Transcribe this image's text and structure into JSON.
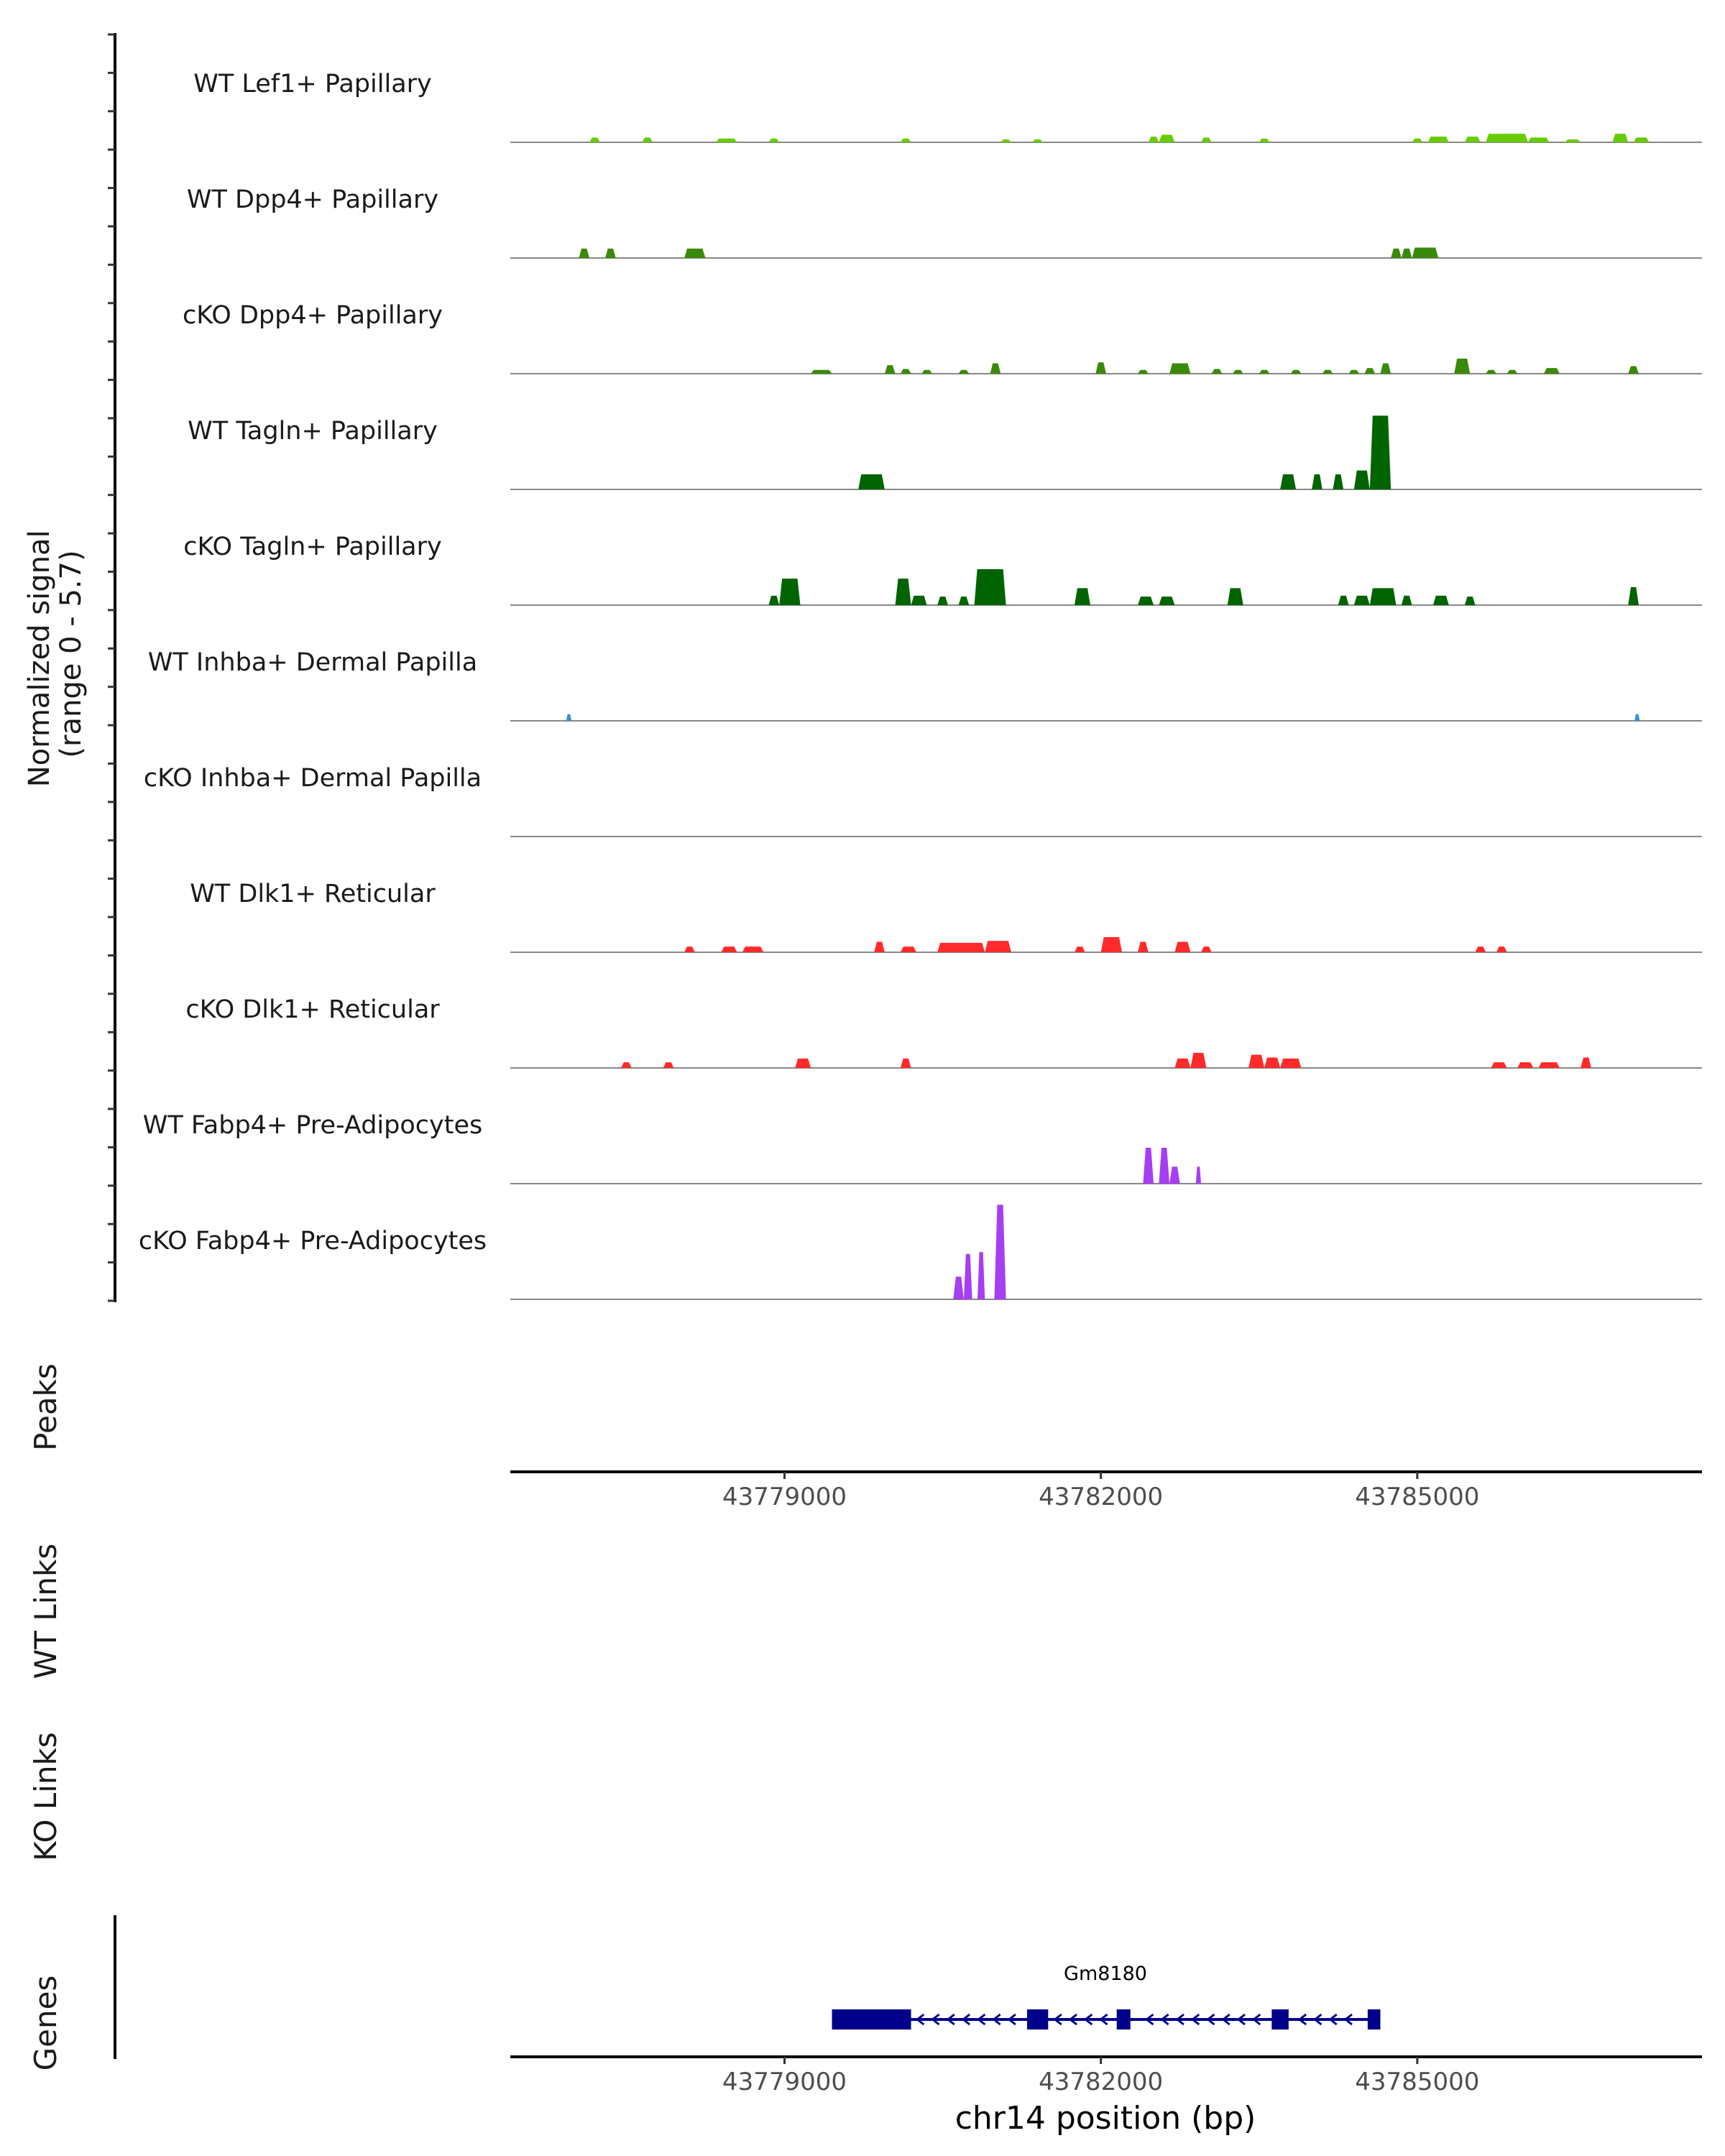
{
  "chart_data": {
    "type": "area",
    "chromosome": "chr14",
    "xlim": [
      43776400,
      43787700
    ],
    "xticks": [
      43779000,
      43782000,
      43785000
    ],
    "xtick_labels": [
      "43779000",
      "43782000",
      "43785000"
    ],
    "xlabel": "chr14 position (bp)",
    "coverage": {
      "ylabel_lines": [
        "Normalized signal",
        "(range 0 - 5.7)"
      ],
      "ylim": [
        0,
        5.7
      ],
      "tracks": [
        {
          "name": "WT Lef1+ Papillary",
          "color": "#66cc00",
          "peaks": [
            [
              43777150,
              43777250,
              0.25
            ],
            [
              43777650,
              43777750,
              0.25
            ],
            [
              43778350,
              43778550,
              0.2
            ],
            [
              43778850,
              43778950,
              0.2
            ],
            [
              43780100,
              43780200,
              0.2
            ],
            [
              43781050,
              43781150,
              0.15
            ],
            [
              43781350,
              43781450,
              0.15
            ],
            [
              43782450,
              43782550,
              0.3
            ],
            [
              43782550,
              43782700,
              0.4
            ],
            [
              43782950,
              43783050,
              0.25
            ],
            [
              43783500,
              43783600,
              0.2
            ],
            [
              43784950,
              43785050,
              0.2
            ],
            [
              43785100,
              43785300,
              0.3
            ],
            [
              43785450,
              43785600,
              0.3
            ],
            [
              43785650,
              43786050,
              0.45
            ],
            [
              43786050,
              43786250,
              0.25
            ],
            [
              43786400,
              43786550,
              0.15
            ],
            [
              43786850,
              43787000,
              0.45
            ],
            [
              43787050,
              43787200,
              0.25
            ]
          ]
        },
        {
          "name": "WT Dpp4+ Papillary",
          "color": "#3a8a0a",
          "peaks": [
            [
              43777050,
              43777150,
              0.5
            ],
            [
              43777300,
              43777400,
              0.5
            ],
            [
              43778050,
              43778250,
              0.5
            ],
            [
              43784750,
              43784850,
              0.5
            ],
            [
              43784850,
              43784950,
              0.5
            ],
            [
              43784950,
              43785200,
              0.55
            ]
          ]
        },
        {
          "name": "cKO Dpp4+ Papillary",
          "color": "#3a8a0a",
          "peaks": [
            [
              43779250,
              43779450,
              0.2
            ],
            [
              43779950,
              43780050,
              0.45
            ],
            [
              43780100,
              43780200,
              0.25
            ],
            [
              43780300,
              43780400,
              0.2
            ],
            [
              43780650,
              43780750,
              0.2
            ],
            [
              43780950,
              43781050,
              0.55
            ],
            [
              43781950,
              43782050,
              0.6
            ],
            [
              43782350,
              43782450,
              0.2
            ],
            [
              43782650,
              43782850,
              0.55
            ],
            [
              43783050,
              43783150,
              0.25
            ],
            [
              43783250,
              43783350,
              0.2
            ],
            [
              43783500,
              43783600,
              0.2
            ],
            [
              43783800,
              43783900,
              0.2
            ],
            [
              43784100,
              43784200,
              0.2
            ],
            [
              43784350,
              43784450,
              0.2
            ],
            [
              43784500,
              43784600,
              0.3
            ],
            [
              43784650,
              43784750,
              0.55
            ],
            [
              43785350,
              43785500,
              0.8
            ],
            [
              43785650,
              43785750,
              0.2
            ],
            [
              43785850,
              43785950,
              0.2
            ],
            [
              43786200,
              43786350,
              0.3
            ],
            [
              43787000,
              43787100,
              0.4
            ]
          ]
        },
        {
          "name": "WT Tagln+ Papillary",
          "color": "#006400",
          "peaks": [
            [
              43779700,
              43779950,
              0.8
            ],
            [
              43783700,
              43783850,
              0.8
            ],
            [
              43784000,
              43784100,
              0.8
            ],
            [
              43784200,
              43784300,
              0.8
            ],
            [
              43784400,
              43784550,
              1.0
            ],
            [
              43784550,
              43784750,
              3.9
            ]
          ]
        },
        {
          "name": "cKO Tagln+ Papillary",
          "color": "#006400",
          "peaks": [
            [
              43778850,
              43778950,
              0.5
            ],
            [
              43778950,
              43779150,
              1.4
            ],
            [
              43780050,
              43780200,
              1.4
            ],
            [
              43780200,
              43780350,
              0.5
            ],
            [
              43780450,
              43780550,
              0.45
            ],
            [
              43780650,
              43780750,
              0.45
            ],
            [
              43780800,
              43781100,
              1.9
            ],
            [
              43781750,
              43781900,
              0.9
            ],
            [
              43782350,
              43782500,
              0.45
            ],
            [
              43782550,
              43782700,
              0.45
            ],
            [
              43783200,
              43783350,
              0.9
            ],
            [
              43784250,
              43784350,
              0.5
            ],
            [
              43784400,
              43784550,
              0.5
            ],
            [
              43784550,
              43784800,
              0.9
            ],
            [
              43784850,
              43784950,
              0.5
            ],
            [
              43785150,
              43785300,
              0.5
            ],
            [
              43785450,
              43785550,
              0.45
            ],
            [
              43787000,
              43787100,
              0.95
            ]
          ]
        },
        {
          "name": "WT Inhba+ Dermal Papilla",
          "color": "#3a8fd6",
          "peaks": [
            [
              43776930,
              43776980,
              0.35
            ],
            [
              43787060,
              43787110,
              0.35
            ]
          ]
        },
        {
          "name": "cKO Inhba+ Dermal Papilla",
          "color": "#3a8fd6",
          "peaks": []
        },
        {
          "name": "WT Dlk1+ Reticular",
          "color": "#ff2a2a",
          "peaks": [
            [
              43778050,
              43778150,
              0.3
            ],
            [
              43778400,
              43778550,
              0.3
            ],
            [
              43778600,
              43778800,
              0.3
            ],
            [
              43779850,
              43779950,
              0.55
            ],
            [
              43780100,
              43780250,
              0.3
            ],
            [
              43780450,
              43780900,
              0.5
            ],
            [
              43780900,
              43781150,
              0.6
            ],
            [
              43781750,
              43781850,
              0.3
            ],
            [
              43782000,
              43782200,
              0.8
            ],
            [
              43782350,
              43782450,
              0.55
            ],
            [
              43782700,
              43782850,
              0.55
            ],
            [
              43782950,
              43783050,
              0.3
            ],
            [
              43785550,
              43785650,
              0.3
            ],
            [
              43785750,
              43785850,
              0.3
            ]
          ]
        },
        {
          "name": "cKO Dlk1+ Reticular",
          "color": "#ff2a2a",
          "peaks": [
            [
              43777450,
              43777550,
              0.3
            ],
            [
              43777850,
              43777950,
              0.3
            ],
            [
              43779100,
              43779250,
              0.5
            ],
            [
              43780100,
              43780200,
              0.5
            ],
            [
              43782700,
              43782850,
              0.5
            ],
            [
              43782850,
              43783000,
              0.8
            ],
            [
              43783400,
              43783550,
              0.7
            ],
            [
              43783550,
              43783700,
              0.55
            ],
            [
              43783700,
              43783900,
              0.5
            ],
            [
              43785700,
              43785850,
              0.3
            ],
            [
              43785950,
              43786100,
              0.3
            ],
            [
              43786150,
              43786350,
              0.3
            ],
            [
              43786550,
              43786650,
              0.55
            ]
          ]
        },
        {
          "name": "WT Fabp4+ Pre-Adipocytes",
          "color": "#a63ef2",
          "peaks": [
            [
              43782400,
              43782500,
              1.9
            ],
            [
              43782550,
              43782650,
              1.9
            ],
            [
              43782650,
              43782750,
              0.9
            ],
            [
              43782900,
              43782950,
              0.9
            ]
          ]
        },
        {
          "name": "cKO Fabp4+ Pre-Adipocytes",
          "color": "#a63ef2",
          "peaks": [
            [
              43780600,
              43780700,
              1.2
            ],
            [
              43780700,
              43780780,
              2.4
            ],
            [
              43780830,
              43780900,
              2.5
            ],
            [
              43780990,
              43781100,
              5.0
            ]
          ]
        }
      ]
    },
    "other_tracks": [
      "Peaks",
      "WT Links",
      "KO Links"
    ],
    "genes": {
      "label": "Genes",
      "gene_name": "Gm8180",
      "strand": "-",
      "start": 43779450,
      "end": 43784650,
      "exons": [
        [
          43779450,
          43780200
        ],
        [
          43781300,
          43781500
        ],
        [
          43782150,
          43782280
        ],
        [
          43783620,
          43783780
        ],
        [
          43784530,
          43784650
        ]
      ]
    }
  }
}
